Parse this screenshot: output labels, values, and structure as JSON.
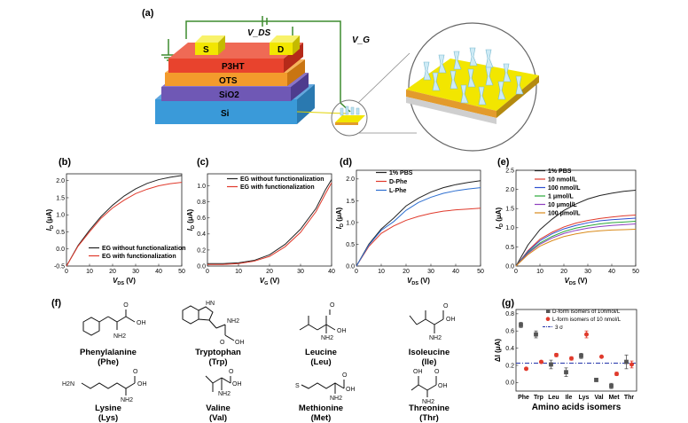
{
  "panels": {
    "a": "(a)",
    "b": "(b)",
    "c": "(c)",
    "d": "(d)",
    "e": "(e)",
    "f": "(f)",
    "g": "(g)"
  },
  "device": {
    "vds": "V_DS",
    "vg": "V_G",
    "s": "S",
    "d": "D",
    "layers": [
      "P3HT",
      "OTS",
      "SiO2",
      "Si"
    ],
    "colors": {
      "p3ht": "#e8432d",
      "ots": "#f39b2c",
      "sio2": "#6f58b5",
      "si": "#3a9ad9",
      "electrode": "#f2e600",
      "wire": "#3d8b2f"
    }
  },
  "chart_data": [
    {
      "id": "b",
      "type": "line",
      "xlabel": "V_DS (V)",
      "ylabel": "I_D (μA)",
      "xlim": [
        0,
        50
      ],
      "ylim": [
        -0.5,
        2.2
      ],
      "xticks": [
        0,
        10,
        20,
        30,
        40,
        50
      ],
      "yticks": [
        -0.5,
        0.0,
        0.5,
        1.0,
        1.5,
        2.0
      ],
      "series": [
        {
          "name": "EG without functionalization",
          "color": "#222222",
          "x": [
            0,
            5,
            10,
            15,
            20,
            25,
            30,
            35,
            40,
            45,
            50
          ],
          "y": [
            -0.5,
            0.1,
            0.55,
            0.95,
            1.28,
            1.55,
            1.76,
            1.92,
            2.03,
            2.1,
            2.15
          ]
        },
        {
          "name": "EG with functionalization",
          "color": "#e03a2c",
          "x": [
            0,
            5,
            10,
            15,
            20,
            25,
            30,
            35,
            40,
            45,
            50
          ],
          "y": [
            -0.5,
            0.08,
            0.5,
            0.9,
            1.2,
            1.43,
            1.62,
            1.75,
            1.85,
            1.91,
            1.95
          ]
        }
      ]
    },
    {
      "id": "c",
      "type": "line",
      "xlabel": "V_G (V)",
      "ylabel": "I_D (μA)",
      "xlim": [
        0,
        40
      ],
      "ylim": [
        0,
        1.15
      ],
      "xticks": [
        0,
        10,
        20,
        30,
        40
      ],
      "yticks": [
        0.0,
        0.2,
        0.4,
        0.6,
        0.8,
        1.0
      ],
      "series": [
        {
          "name": "EG without functionalization",
          "color": "#222222",
          "x": [
            0,
            5,
            10,
            15,
            20,
            25,
            30,
            35,
            38,
            40
          ],
          "y": [
            0.03,
            0.03,
            0.04,
            0.07,
            0.14,
            0.27,
            0.46,
            0.72,
            0.95,
            1.08
          ]
        },
        {
          "name": "EG with functionalization",
          "color": "#e03a2c",
          "x": [
            0,
            5,
            10,
            15,
            20,
            25,
            30,
            35,
            38,
            40
          ],
          "y": [
            0.02,
            0.02,
            0.03,
            0.06,
            0.12,
            0.24,
            0.42,
            0.68,
            0.9,
            1.04
          ]
        }
      ]
    },
    {
      "id": "d",
      "type": "line",
      "xlabel": "V_DS (V)",
      "ylabel": "I_D (μA)",
      "xlim": [
        0,
        50
      ],
      "ylim": [
        0,
        2.2
      ],
      "xticks": [
        0,
        10,
        20,
        30,
        40,
        50
      ],
      "yticks": [
        0.0,
        0.5,
        1.0,
        1.5,
        2.0
      ],
      "series": [
        {
          "name": "1% PBS",
          "color": "#222222",
          "x": [
            0,
            5,
            10,
            15,
            20,
            25,
            30,
            35,
            40,
            45,
            50
          ],
          "y": [
            0,
            0.5,
            0.85,
            1.1,
            1.38,
            1.56,
            1.7,
            1.8,
            1.87,
            1.92,
            1.96
          ]
        },
        {
          "name": "D-Phe",
          "color": "#e03a2c",
          "x": [
            0,
            5,
            10,
            15,
            20,
            25,
            30,
            35,
            40,
            45,
            50
          ],
          "y": [
            0,
            0.45,
            0.75,
            0.92,
            1.05,
            1.14,
            1.21,
            1.26,
            1.29,
            1.31,
            1.33
          ]
        },
        {
          "name": "L-Phe",
          "color": "#2e6fd0",
          "x": [
            0,
            5,
            10,
            15,
            20,
            25,
            30,
            35,
            40,
            45,
            50
          ],
          "y": [
            0,
            0.48,
            0.82,
            1.02,
            1.28,
            1.46,
            1.58,
            1.67,
            1.73,
            1.77,
            1.8
          ]
        }
      ]
    },
    {
      "id": "e",
      "type": "line",
      "xlabel": "V_DS (V)",
      "ylabel": "I_D (μA)",
      "xlim": [
        0,
        50
      ],
      "ylim": [
        0,
        2.5
      ],
      "xticks": [
        0,
        10,
        20,
        30,
        40,
        50
      ],
      "yticks": [
        0.0,
        0.5,
        1.0,
        1.5,
        2.0,
        2.5
      ],
      "series": [
        {
          "name": "1% PBS",
          "color": "#222222",
          "x": [
            0,
            5,
            10,
            15,
            20,
            25,
            30,
            35,
            40,
            45,
            50
          ],
          "y": [
            0,
            0.55,
            0.95,
            1.22,
            1.45,
            1.62,
            1.75,
            1.84,
            1.9,
            1.95,
            1.98
          ]
        },
        {
          "name": "10 nmol/L",
          "color": "#e03a2c",
          "x": [
            0,
            5,
            10,
            15,
            20,
            25,
            30,
            35,
            40,
            45,
            50
          ],
          "y": [
            0,
            0.4,
            0.7,
            0.88,
            1.02,
            1.12,
            1.19,
            1.24,
            1.28,
            1.31,
            1.33
          ]
        },
        {
          "name": "100 nmol/L",
          "color": "#2e4fd0",
          "x": [
            0,
            5,
            10,
            15,
            20,
            25,
            30,
            35,
            40,
            45,
            50
          ],
          "y": [
            0,
            0.38,
            0.66,
            0.84,
            0.97,
            1.06,
            1.13,
            1.18,
            1.21,
            1.23,
            1.25
          ]
        },
        {
          "name": "1 μmol/L",
          "color": "#2aa83a",
          "x": [
            0,
            5,
            10,
            15,
            20,
            25,
            30,
            35,
            40,
            45,
            50
          ],
          "y": [
            0,
            0.35,
            0.6,
            0.77,
            0.9,
            0.99,
            1.05,
            1.1,
            1.13,
            1.15,
            1.17
          ]
        },
        {
          "name": "10 μmol/L",
          "color": "#8e3fbf",
          "x": [
            0,
            5,
            10,
            15,
            20,
            25,
            30,
            35,
            40,
            45,
            50
          ],
          "y": [
            0,
            0.33,
            0.57,
            0.73,
            0.85,
            0.93,
            0.99,
            1.03,
            1.06,
            1.08,
            1.1
          ]
        },
        {
          "name": "100 μmol/L",
          "color": "#d98a1a",
          "x": [
            0,
            5,
            10,
            15,
            20,
            25,
            30,
            35,
            40,
            45,
            50
          ],
          "y": [
            0,
            0.3,
            0.52,
            0.66,
            0.77,
            0.84,
            0.89,
            0.92,
            0.94,
            0.95,
            0.96
          ]
        }
      ]
    },
    {
      "id": "g",
      "type": "scatter",
      "xlabel": "Amino acids isomers",
      "ylabel": "ΔI (μA)",
      "ylim": [
        -0.1,
        0.85
      ],
      "categories": [
        "Phe",
        "Trp",
        "Leu",
        "Ile",
        "Lys",
        "Val",
        "Met",
        "Thr"
      ],
      "yticks": [
        0.0,
        0.2,
        0.4,
        0.6,
        0.8
      ],
      "threshold": {
        "name": "3 σ",
        "value": 0.225,
        "color": "#2233aa"
      },
      "series": [
        {
          "name": "D-form isomers of 10nmol/L",
          "color": "#555555",
          "values": [
            0.67,
            0.56,
            0.21,
            0.12,
            0.31,
            0.03,
            -0.04,
            0.24
          ],
          "err": [
            0.03,
            0.04,
            0.05,
            0.05,
            0.03,
            0.02,
            0.03,
            0.08
          ]
        },
        {
          "name": "L-form isomers of 10 nmol/L",
          "color": "#e03a2c",
          "values": [
            0.16,
            0.24,
            0.32,
            0.28,
            0.56,
            0.3,
            0.1,
            0.21
          ],
          "err": [
            0.01,
            0.01,
            0.02,
            0.02,
            0.04,
            0.01,
            0.02,
            0.04
          ]
        }
      ]
    }
  ],
  "molecules": [
    {
      "name": "Phenylalanine",
      "abbr": "(Phe)"
    },
    {
      "name": "Tryptophan",
      "abbr": "(Trp)"
    },
    {
      "name": "Leucine",
      "abbr": "(Leu)"
    },
    {
      "name": "Isoleucine",
      "abbr": "(Ile)"
    },
    {
      "name": "Lysine",
      "abbr": "(Lys)"
    },
    {
      "name": "Valine",
      "abbr": "(Val)"
    },
    {
      "name": "Methionine",
      "abbr": "(Met)"
    },
    {
      "name": "Threonine",
      "abbr": "(Thr)"
    }
  ],
  "chem": {
    "nh2": "NH2",
    "oh": "OH",
    "o": "O",
    "hn": "HN",
    "h2n": "H2N",
    "s": "S"
  }
}
